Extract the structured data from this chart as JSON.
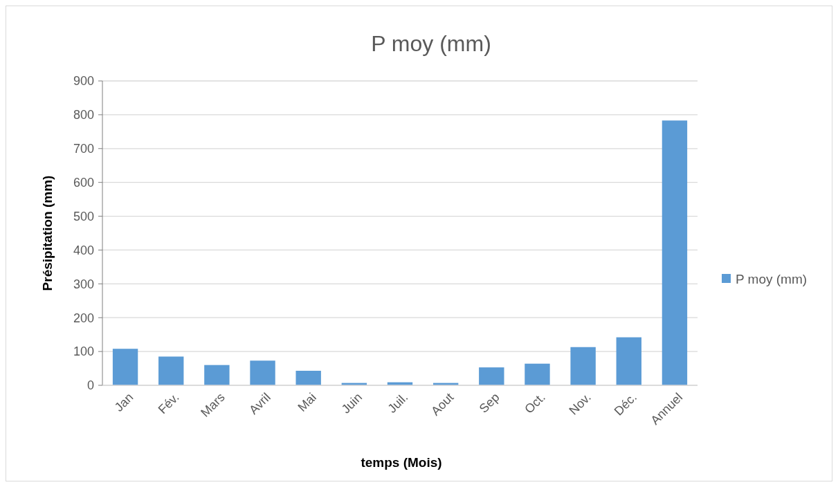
{
  "chart_data": {
    "type": "bar",
    "title": "P moy (mm)",
    "xlabel": "temps (Mois)",
    "ylabel": "Présipitation (mm)",
    "categories": [
      "Jan",
      "Fév.",
      "Mars",
      "Avril",
      "Mai",
      "Juin",
      "Juil.",
      "Aout",
      "Sep",
      "Oct.",
      "Nov.",
      "Déc.",
      "Annuel"
    ],
    "series": [
      {
        "name": "P moy (mm)",
        "color": "#5b9bd5",
        "values": [
          108,
          85,
          60,
          73,
          43,
          7,
          9,
          7,
          53,
          64,
          113,
          142,
          783
        ]
      }
    ],
    "ylim": [
      0,
      900
    ],
    "yticks": [
      0,
      100,
      200,
      300,
      400,
      500,
      600,
      700,
      800,
      900
    ],
    "grid": "y",
    "legend": "right"
  }
}
